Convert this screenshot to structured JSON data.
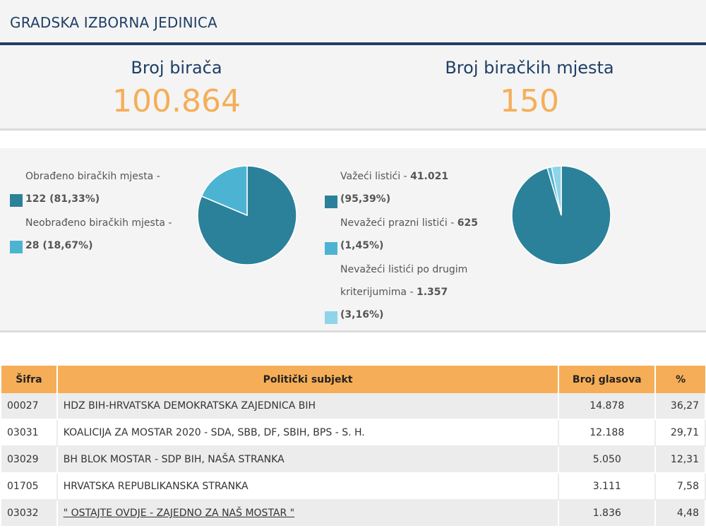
{
  "header": {
    "title": "GRADSKA IZBORNA JEDINICA"
  },
  "stats": {
    "voters_label": "Broj birača",
    "voters_value": "100.864",
    "stations_label": "Broj biračkih mjesta",
    "stations_value": "150"
  },
  "colors": {
    "accent_dark": "#2b8199",
    "accent_mid": "#4cb4d2",
    "accent_light": "#8fd4e8",
    "orange": "#f5ae57",
    "navy": "#1f3f66"
  },
  "chart_data": [
    {
      "type": "pie",
      "slices": [
        {
          "label": "Obrađeno biračkih mjesta",
          "value": 122,
          "percent": "81,33%",
          "color": "#2b8199",
          "text": "Obrađeno biračkih mjesta -",
          "detail": "122 (81,33%)"
        },
        {
          "label": "Neobrađeno biračkih mjesta",
          "value": 28,
          "percent": "18,67%",
          "color": "#4cb4d2",
          "text": "Neobrađeno biračkih mjesta -",
          "detail": "28 (18,67%)"
        }
      ]
    },
    {
      "type": "pie",
      "slices": [
        {
          "label": "Važeći listići",
          "value": 41021,
          "percent": "95,39%",
          "color": "#2b8199",
          "text": "Važeći listići - ",
          "detail": "41.021",
          "pct_text": "(95,39%)"
        },
        {
          "label": "Nevažeći prazni listići",
          "value": 625,
          "percent": "1,45%",
          "color": "#4cb4d2",
          "text": "Nevažeći prazni listići - ",
          "detail": "625",
          "pct_text": "(1,45%)"
        },
        {
          "label": "Nevažeći listići po drugim kriterijumima",
          "value": 1357,
          "percent": "3,16%",
          "color": "#8fd4e8",
          "text_line1": "Nevažeći listići po drugim",
          "text_line2": "kriterijumima - ",
          "detail": "1.357",
          "pct_text": "(3,16%)"
        }
      ]
    }
  ],
  "table": {
    "headers": {
      "code": "Šifra",
      "subject": "Politički subjekt",
      "votes": "Broj glasova",
      "pct": "%"
    },
    "rows": [
      {
        "code": "00027",
        "subject": "HDZ BIH-HRVATSKA DEMOKRATSKA ZAJEDNICA BIH",
        "votes": "14.878",
        "pct": "36,27"
      },
      {
        "code": "03031",
        "subject": "KOALICIJA ZA MOSTAR 2020 - SDA, SBB, DF, SBIH, BPS - S. H.",
        "votes": "12.188",
        "pct": "29,71"
      },
      {
        "code": "03029",
        "subject": "BH BLOK MOSTAR - SDP BIH, NAŠA STRANKA",
        "votes": "5.050",
        "pct": "12,31"
      },
      {
        "code": "01705",
        "subject": "HRVATSKA REPUBLIKANSKA STRANKA",
        "votes": "3.111",
        "pct": "7,58"
      },
      {
        "code": "03032",
        "subject": "\" OSTAJTE OVDJE - ZAJEDNO ZA NAŠ MOSTAR \"",
        "votes": "1.836",
        "pct": "4,48"
      }
    ]
  }
}
